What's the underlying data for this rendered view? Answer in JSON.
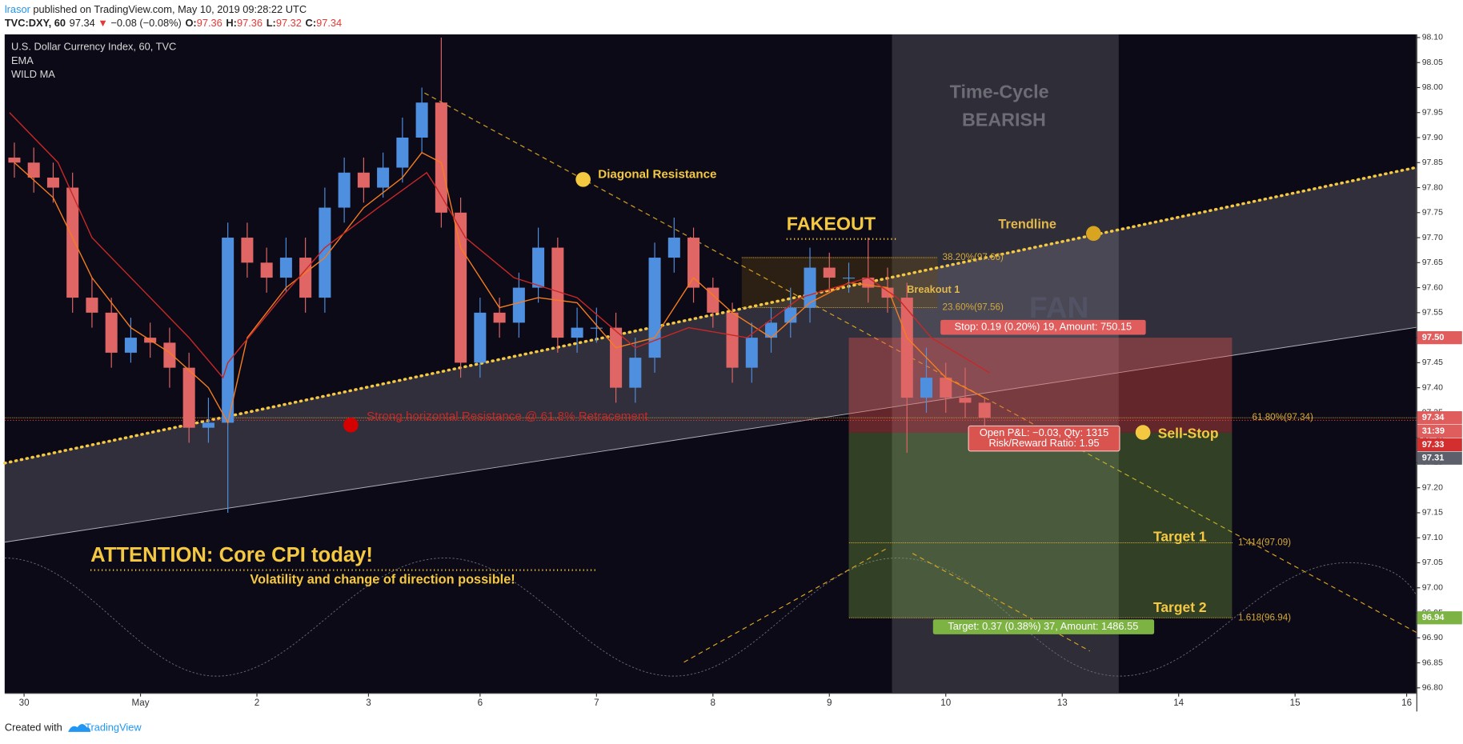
{
  "header": {
    "author": "lrasor",
    "published": "published on TradingView.com, May 10, 2019 09:28:22 UTC",
    "symbol": "TVC:DXY, 60",
    "price": "97.34",
    "arrow": "▼",
    "change": "−0.08 (−0.08%)",
    "ohlc": [
      {
        "label": "O:",
        "value": "97.36"
      },
      {
        "label": "H:",
        "value": "97.36"
      },
      {
        "label": "L:",
        "value": "97.32"
      },
      {
        "label": "C:",
        "value": "97.34"
      }
    ]
  },
  "chart_data": {
    "type": "candlestick",
    "title": "U.S. Dollar Currency Index, 60, TVC",
    "up_color": "#4f8fe0",
    "down_color": "#e06666",
    "x": [
      2,
      6,
      10,
      14,
      18,
      22,
      26,
      30,
      34,
      38,
      42,
      46,
      50,
      54,
      58,
      62,
      66,
      70,
      74,
      78,
      82,
      86,
      90,
      94,
      98,
      102,
      106,
      110,
      114,
      118,
      122,
      126,
      130,
      134,
      138,
      142,
      146,
      150,
      154,
      158,
      162,
      166,
      170,
      174,
      178,
      182,
      186,
      190,
      194,
      198,
      202
    ],
    "open": [
      97.86,
      97.85,
      97.82,
      97.8,
      97.58,
      97.55,
      97.47,
      97.5,
      97.49,
      97.44,
      97.32,
      97.33,
      97.7,
      97.65,
      97.62,
      97.66,
      97.58,
      97.76,
      97.83,
      97.8,
      97.84,
      97.9,
      97.97,
      97.75,
      97.45,
      97.55,
      97.53,
      97.6,
      97.68,
      97.5,
      97.52,
      97.52,
      97.4,
      97.46,
      97.66,
      97.7,
      97.6,
      97.55,
      97.44,
      97.5,
      97.53,
      97.56,
      97.64,
      97.62,
      97.62,
      97.6,
      97.58,
      97.38,
      97.42,
      97.38,
      97.37
    ],
    "high": [
      97.89,
      97.88,
      97.85,
      97.83,
      97.62,
      97.58,
      97.54,
      97.53,
      97.52,
      97.47,
      97.38,
      97.73,
      97.73,
      97.68,
      97.7,
      97.7,
      97.8,
      97.86,
      97.86,
      97.87,
      97.94,
      98.0,
      98.1,
      97.78,
      97.58,
      97.58,
      97.63,
      97.72,
      97.7,
      97.56,
      97.56,
      97.55,
      97.5,
      97.69,
      97.74,
      97.72,
      97.62,
      97.57,
      97.53,
      97.56,
      97.6,
      97.68,
      97.67,
      97.65,
      97.7,
      97.64,
      97.61,
      97.48,
      97.45,
      97.44,
      97.38
    ],
    "low": [
      97.82,
      97.79,
      97.77,
      97.55,
      97.52,
      97.44,
      97.45,
      97.46,
      97.4,
      97.29,
      97.29,
      97.15,
      97.62,
      97.59,
      97.59,
      97.55,
      97.55,
      97.73,
      97.77,
      97.78,
      97.81,
      97.87,
      97.72,
      97.42,
      97.42,
      97.5,
      97.5,
      97.57,
      97.47,
      97.47,
      97.49,
      97.37,
      97.37,
      97.43,
      97.63,
      97.57,
      97.52,
      97.41,
      97.41,
      97.47,
      97.5,
      97.53,
      97.59,
      97.59,
      97.57,
      97.55,
      97.27,
      97.35,
      97.35,
      97.34,
      97.31
    ],
    "close": [
      97.85,
      97.82,
      97.8,
      97.58,
      97.55,
      97.47,
      97.5,
      97.49,
      97.44,
      97.32,
      97.33,
      97.7,
      97.65,
      97.62,
      97.66,
      97.58,
      97.76,
      97.83,
      97.8,
      97.84,
      97.9,
      97.97,
      97.75,
      97.45,
      97.55,
      97.53,
      97.6,
      97.68,
      97.5,
      97.52,
      97.52,
      97.4,
      97.46,
      97.66,
      97.7,
      97.6,
      97.55,
      97.44,
      97.5,
      97.53,
      97.56,
      97.64,
      97.62,
      97.62,
      97.6,
      97.58,
      97.38,
      97.42,
      97.38,
      97.37,
      97.34
    ],
    "indicators": [
      {
        "name": "EMA",
        "color": "#f57c1f",
        "x": [
          2,
          10,
          18,
          26,
          34,
          42,
          46,
          50,
          58,
          66,
          74,
          82,
          86,
          90,
          94,
          102,
          110,
          118,
          126,
          134,
          142,
          150,
          158,
          166,
          174,
          182,
          186,
          194,
          202
        ],
        "values": [
          97.85,
          97.78,
          97.62,
          97.52,
          97.47,
          97.4,
          97.33,
          97.5,
          97.6,
          97.66,
          97.76,
          97.82,
          97.87,
          97.85,
          97.68,
          97.56,
          97.58,
          97.57,
          97.48,
          97.5,
          97.62,
          97.55,
          97.5,
          97.57,
          97.61,
          97.6,
          97.5,
          97.42,
          97.38
        ]
      },
      {
        "name": "WILD MA",
        "color": "#c62828",
        "x": [
          1,
          11,
          18,
          28,
          38,
          45,
          46,
          57,
          66,
          77,
          87,
          89,
          95,
          105,
          118,
          130,
          141,
          153,
          164,
          178,
          184,
          191,
          203
        ],
        "values": [
          97.95,
          97.85,
          97.7,
          97.6,
          97.5,
          97.42,
          97.45,
          97.58,
          97.68,
          97.76,
          97.83,
          97.8,
          97.7,
          97.62,
          97.58,
          97.48,
          97.52,
          97.5,
          97.58,
          97.62,
          97.58,
          97.5,
          97.43
        ]
      }
    ],
    "xlim": [
      0,
      291
    ],
    "xticks": [
      {
        "value": 4,
        "label": "30"
      },
      {
        "value": 28,
        "label": "May"
      },
      {
        "value": 52,
        "label": "2"
      },
      {
        "value": 75,
        "label": "3"
      },
      {
        "value": 98,
        "label": "6"
      },
      {
        "value": 122,
        "label": "7"
      },
      {
        "value": 146,
        "label": "8"
      },
      {
        "value": 170,
        "label": "9"
      },
      {
        "value": 194,
        "label": "10"
      },
      {
        "value": 218,
        "label": "13"
      },
      {
        "value": 242,
        "label": "14"
      },
      {
        "value": 266,
        "label": "15"
      },
      {
        "value": 289,
        "label": "16"
      }
    ],
    "ylim": [
      96.79,
      98.11
    ],
    "yticks": [
      {
        "value": 96.8,
        "label": "96.80"
      },
      96.85,
      {
        "value": 96.9,
        "label": "96.90"
      },
      96.95,
      {
        "value": 97,
        "label": "97.00"
      },
      97.05,
      {
        "value": 97.1,
        "label": "97.10"
      },
      97.15,
      {
        "value": 97.2,
        "label": "97.20"
      },
      97.25,
      {
        "value": 97.3,
        "label": "97.30"
      },
      97.35,
      {
        "value": 97.4,
        "label": "97.40"
      },
      97.45,
      {
        "value": 97.5,
        "label": "97.50"
      },
      97.55,
      {
        "value": 97.6,
        "label": "97.60"
      },
      97.65,
      {
        "value": 97.7,
        "label": "97.70"
      },
      97.75,
      {
        "value": 97.8,
        "label": "97.80"
      },
      97.85,
      {
        "value": 97.9,
        "label": "97.90"
      },
      97.95,
      {
        "value": 98,
        "label": "98.00"
      },
      98.05,
      {
        "value": 98.1,
        "label": "98.10"
      }
    ],
    "levels": [
      {
        "value": 97.66,
        "label": "38.20%(97.66)",
        "color": "#d4a93a"
      },
      {
        "value": 97.56,
        "label": "23.60%(97.56)",
        "color": "#d4a93a"
      },
      {
        "value": 97.34,
        "label": "61.80%(97.34)",
        "color": "#d4a93a"
      },
      {
        "value": 97.09,
        "label": "1.414(97.09)",
        "color": "#d4a93a"
      },
      {
        "value": 96.94,
        "label": "1.618(96.94)",
        "color": "#d4a93a"
      }
    ],
    "position": {
      "entry": 97.31,
      "stop": 97.5,
      "target": 96.94,
      "x": [
        174,
        253
      ],
      "stop_label": "Stop: 0.19 (0.20%) 19, Amount: 750.15",
      "target_label": "Target: 0.37 (0.38%) 37, Amount: 1486.55",
      "pnl_label": "Open P&L: −0.03, Qty: 1315",
      "rr_label": "Risk/Reward Ratio: 1.95"
    },
    "price_tags": [
      {
        "value": 97.5,
        "label": "97.50",
        "color": "#e05d5d"
      },
      {
        "value": 97.34,
        "label": "97.34",
        "color": "#e05d5d"
      },
      {
        "value": 97.33,
        "label": "97.33",
        "color": "#d32f2f"
      },
      {
        "value": 97.31,
        "label": "97.31",
        "color": "#5d606b"
      },
      {
        "value": 96.94,
        "label": "96.94",
        "color": "#7cb342"
      }
    ],
    "countdown": "31:39",
    "annotations": {
      "time_cycle": "Time-Cycle",
      "bearish": "BEARISH",
      "diagonal": "Diagonal Resistance",
      "fakeout": "FAKEOUT",
      "trendline": "Trendline",
      "breakout": "Breakout 1",
      "fan": "FAN",
      "horizontal": "Strong horizontal Resistance @ 61.8% Retracement",
      "sell_stop": "Sell-Stop",
      "target1": "Target 1",
      "target2": "Target 2",
      "attention": "ATTENTION: Core CPI today!",
      "volatility": "Volatility and change of direction possible!"
    }
  },
  "footer": {
    "created": "Created with",
    "brand": "TradingView"
  }
}
